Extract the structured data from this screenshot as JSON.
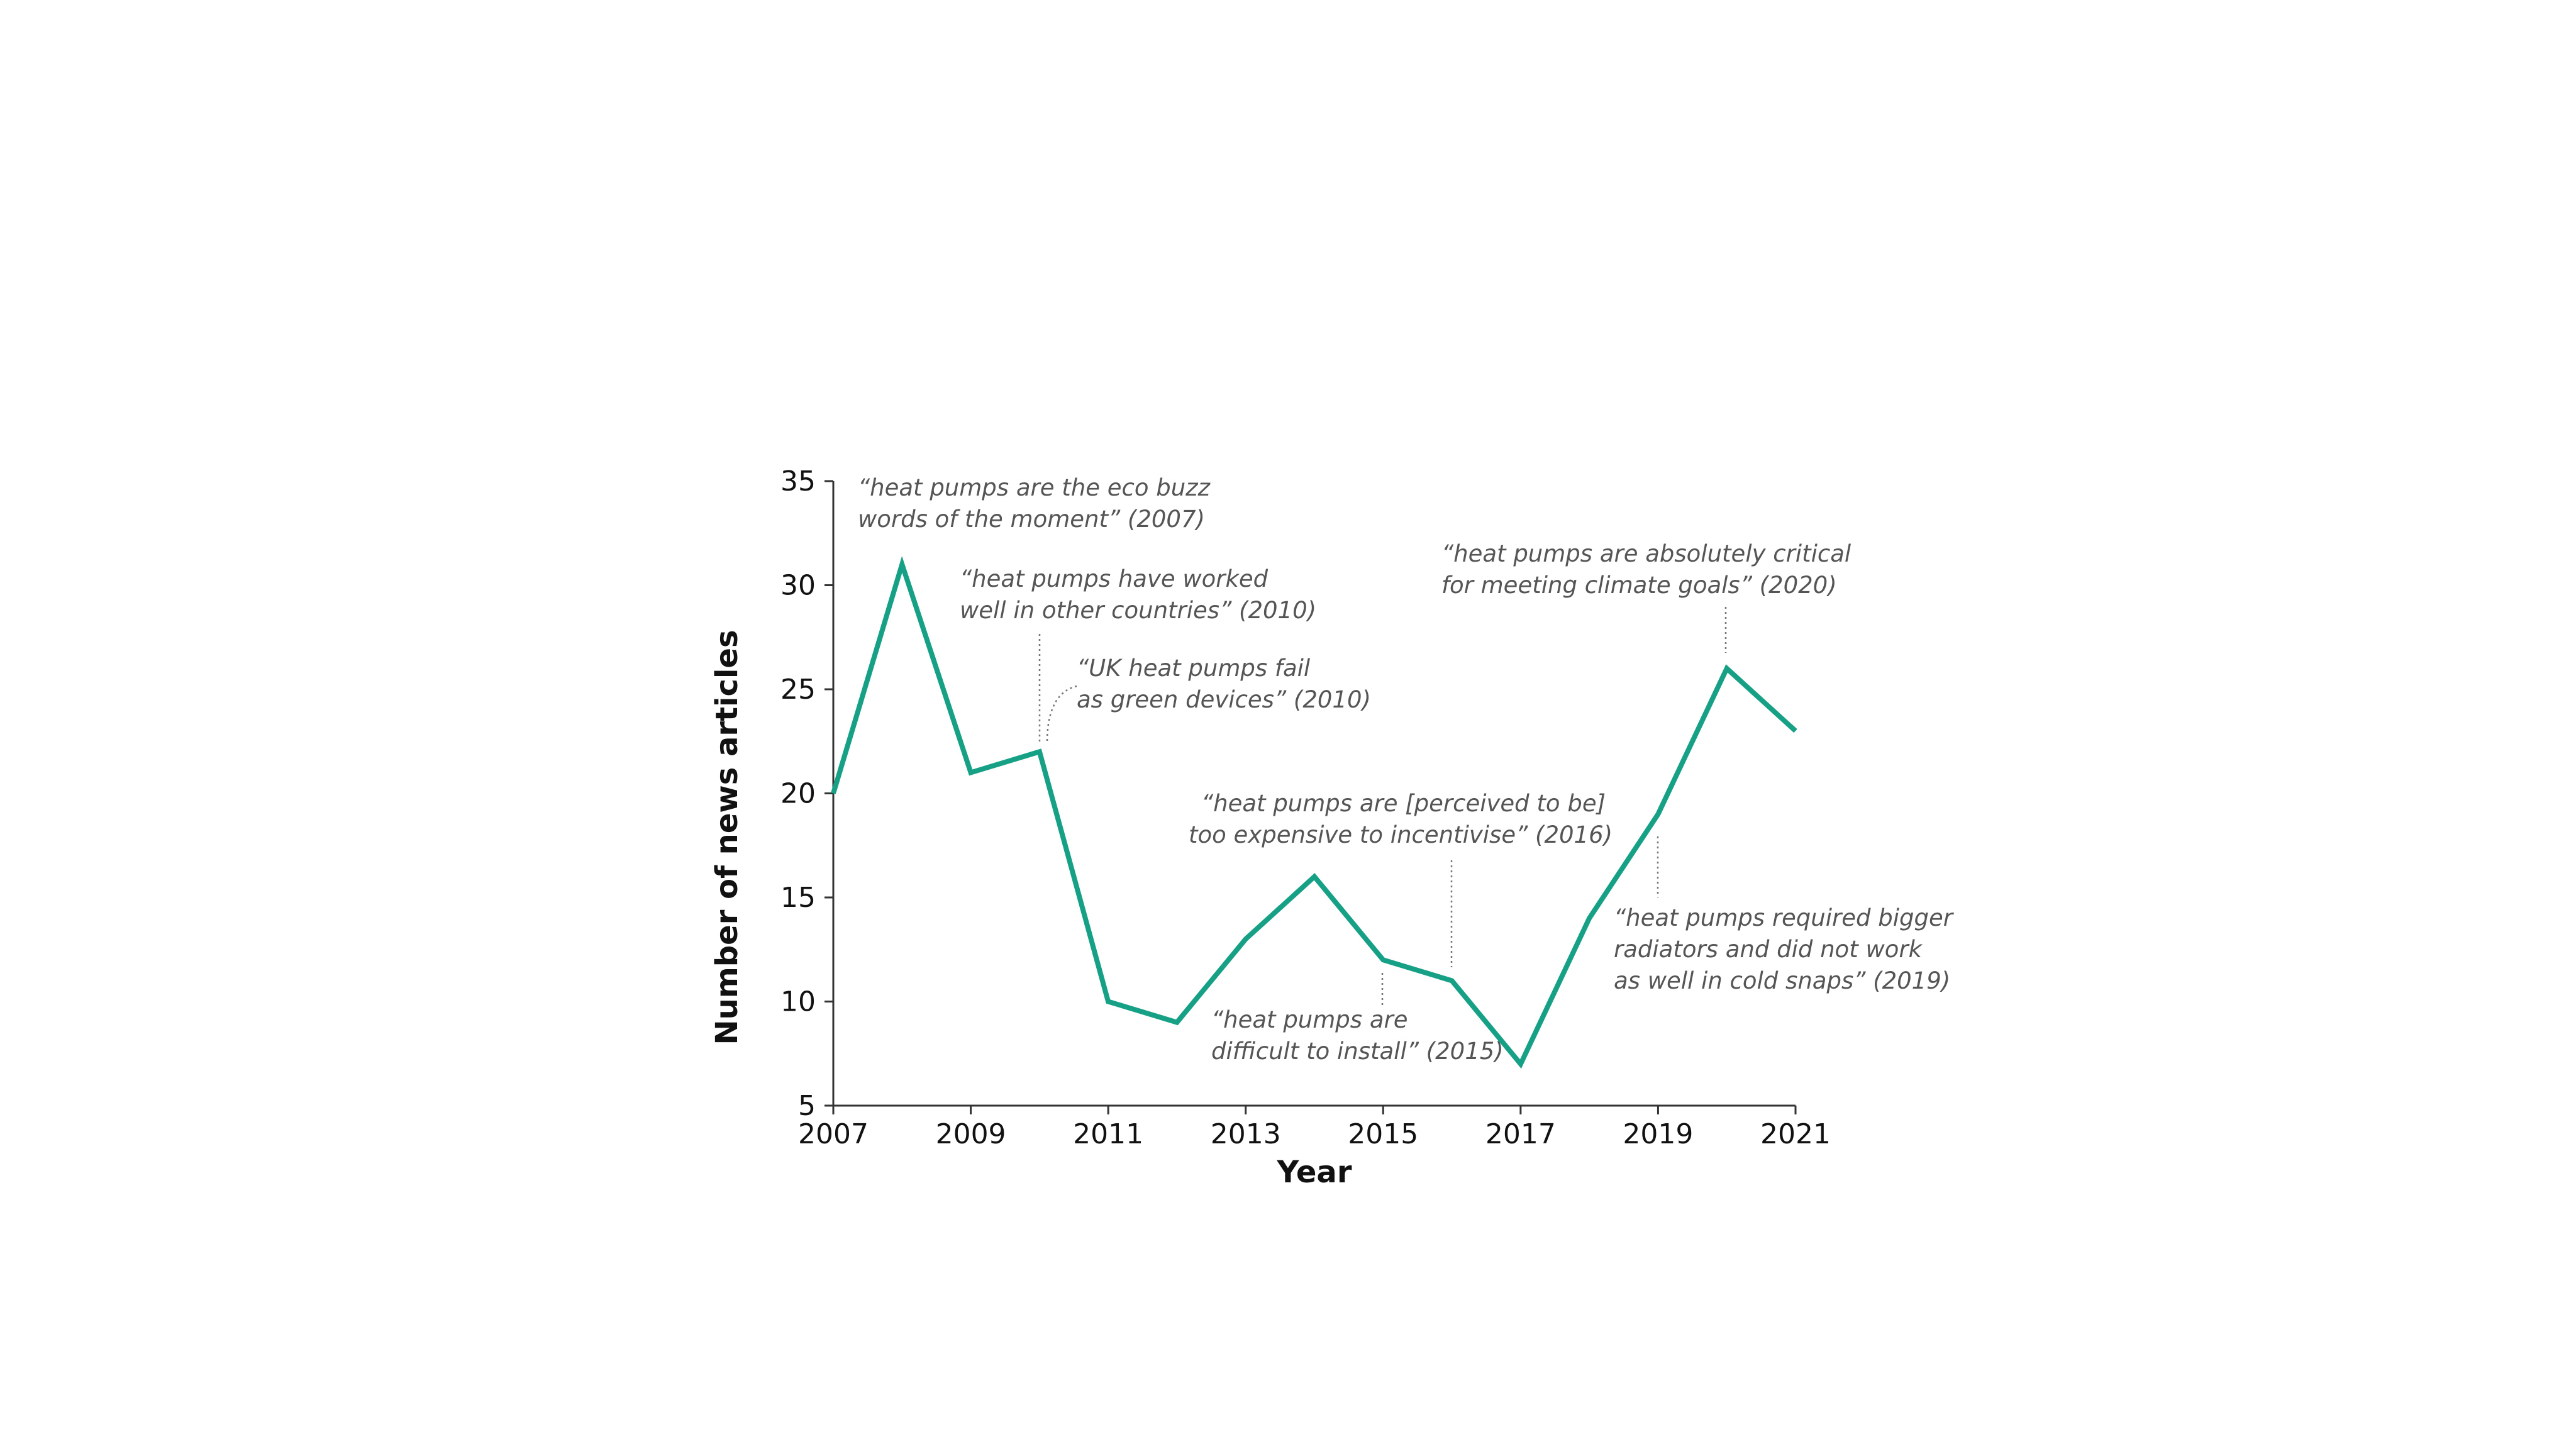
{
  "chart_data": {
    "type": "line",
    "title": "",
    "xlabel": "Year",
    "ylabel": "Number of news articles",
    "xlim": [
      2007,
      2021
    ],
    "ylim": [
      5,
      35
    ],
    "x_ticks": [
      "2007",
      "2009",
      "2011",
      "2013",
      "2015",
      "2017",
      "2019",
      "2021"
    ],
    "y_ticks": [
      "5",
      "10",
      "15",
      "20",
      "25",
      "30",
      "35"
    ],
    "grid": false,
    "line_color": "#16a085",
    "series": [
      {
        "x": [
          2007,
          2008,
          2009,
          2010,
          2011,
          2012,
          2013,
          2014,
          2015,
          2016,
          2017,
          2018,
          2019,
          2020,
          2021
        ],
        "values": [
          20,
          31,
          21,
          22,
          10,
          9,
          13,
          16,
          12,
          11,
          7,
          14,
          19,
          26,
          23
        ]
      }
    ],
    "annotations": [
      {
        "lines": [
          "“heat pumps are the eco buzz",
          "words of the moment” (2007)"
        ]
      },
      {
        "lines": [
          "“heat pumps have worked",
          "well in other countries” (2010)"
        ]
      },
      {
        "lines": [
          "“UK heat pumps fail",
          "as green devices” (2010)"
        ]
      },
      {
        "lines": [
          "“heat pumps are [perceived to be]",
          "too  expensive to incentivise” (2016)"
        ]
      },
      {
        "lines": [
          "“heat pumps are",
          "difficult to install” (2015)"
        ]
      },
      {
        "lines": [
          "“heat pumps are absolutely critical",
          "for meeting climate goals” (2020)"
        ]
      },
      {
        "lines": [
          "“heat pumps required bigger",
          "radiators and did not work",
          "as well in cold snaps” (2019)"
        ]
      }
    ]
  }
}
